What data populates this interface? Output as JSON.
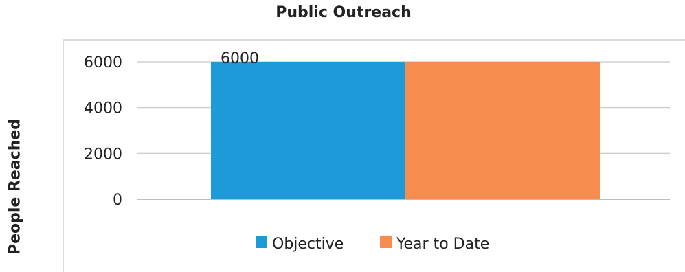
{
  "chart_data": {
    "type": "bar",
    "title": "Public Outreach",
    "xlabel": "",
    "ylabel": "People Reached",
    "categories": [
      ""
    ],
    "series": [
      {
        "name": "Objective",
        "values": [
          6000
        ],
        "color": "#1f9ad9",
        "data_label": "6000"
      },
      {
        "name": "Year to Date",
        "values": [
          6000
        ],
        "color": "#f68c4e"
      }
    ],
    "yticks": [
      0,
      2000,
      4000,
      6000
    ],
    "ylim": [
      0,
      6000
    ],
    "grid": true,
    "legend_position": "bottom"
  }
}
